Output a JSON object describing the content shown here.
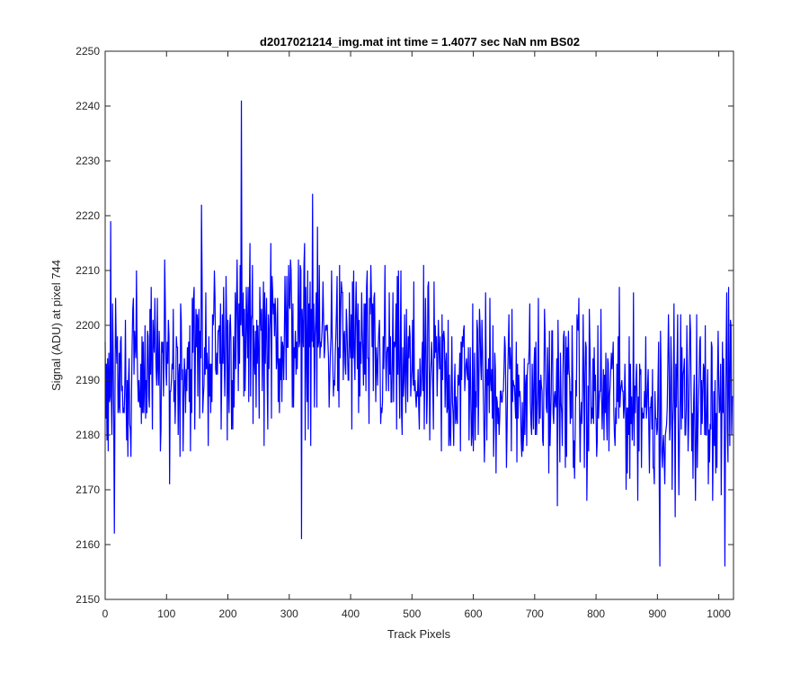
{
  "chart_data": {
    "type": "line",
    "title": "d2017021214_img.mat int time = 1.4077 sec  NaN nm BS02",
    "xlabel": "Track Pixels",
    "ylabel": "Signal (ADU) at pixel 744",
    "xlim": [
      0,
      1024
    ],
    "ylim": [
      2150,
      2250
    ],
    "xticks": [
      0,
      100,
      200,
      300,
      400,
      500,
      600,
      700,
      800,
      900,
      1000
    ],
    "yticks": [
      2150,
      2160,
      2170,
      2180,
      2190,
      2200,
      2210,
      2220,
      2230,
      2240,
      2250
    ],
    "grid": false,
    "legend": "none",
    "series": [
      {
        "color": "#0000ff",
        "n_points": 1024,
        "trend": [
          [
            0,
            2191
          ],
          [
            100,
            2192
          ],
          [
            200,
            2196
          ],
          [
            300,
            2199
          ],
          [
            400,
            2196
          ],
          [
            500,
            2191
          ],
          [
            600,
            2190
          ],
          [
            700,
            2188
          ],
          [
            800,
            2187
          ],
          [
            900,
            2186
          ],
          [
            1023,
            2186
          ]
        ],
        "noise_amplitude": 7,
        "extremes": [
          {
            "x": 9,
            "y": 2219
          },
          {
            "x": 15,
            "y": 2162
          },
          {
            "x": 157,
            "y": 2222
          },
          {
            "x": 222,
            "y": 2241
          },
          {
            "x": 320,
            "y": 2161
          },
          {
            "x": 338,
            "y": 2224
          },
          {
            "x": 904,
            "y": 2156
          },
          {
            "x": 1010,
            "y": 2156
          },
          {
            "x": 1016,
            "y": 2207
          }
        ]
      }
    ]
  }
}
